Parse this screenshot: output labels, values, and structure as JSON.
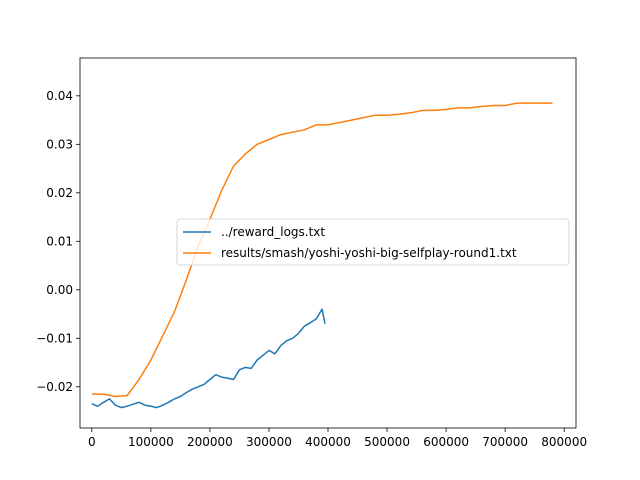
{
  "chart_data": {
    "type": "line",
    "title": "",
    "xlabel": "",
    "ylabel": "",
    "xlim": [
      -20000,
      820000
    ],
    "ylim": [
      -0.0285,
      0.0478
    ],
    "x_ticks": [
      0,
      100000,
      200000,
      300000,
      400000,
      500000,
      600000,
      700000,
      800000
    ],
    "x_tick_labels": [
      "0",
      "100000",
      "200000",
      "300000",
      "400000",
      "500000",
      "600000",
      "700000",
      "800000"
    ],
    "y_ticks": [
      -0.02,
      -0.01,
      0.0,
      0.01,
      0.02,
      0.03,
      0.04
    ],
    "y_tick_labels": [
      "−0.02",
      "−0.01",
      "0.00",
      "0.01",
      "0.02",
      "0.03",
      "0.04"
    ],
    "grid": false,
    "legend": {
      "placement": "center-right"
    },
    "series": [
      {
        "name": "../reward_logs.txt",
        "color": "#1f77b4",
        "x": [
          0,
          10000,
          20000,
          30000,
          40000,
          50000,
          60000,
          70000,
          80000,
          90000,
          100000,
          110000,
          120000,
          130000,
          140000,
          150000,
          160000,
          170000,
          180000,
          190000,
          200000,
          210000,
          220000,
          230000,
          240000,
          250000,
          260000,
          270000,
          280000,
          290000,
          300000,
          310000,
          320000,
          330000,
          340000,
          350000,
          360000,
          370000,
          380000,
          390000,
          395000
        ],
        "y": [
          -0.0235,
          -0.024,
          -0.0232,
          -0.0225,
          -0.0238,
          -0.0243,
          -0.024,
          -0.0236,
          -0.0232,
          -0.0238,
          -0.024,
          -0.0243,
          -0.0238,
          -0.0232,
          -0.0225,
          -0.022,
          -0.0212,
          -0.0205,
          -0.02,
          -0.0195,
          -0.0185,
          -0.0175,
          -0.018,
          -0.0182,
          -0.0185,
          -0.0165,
          -0.016,
          -0.0162,
          -0.0145,
          -0.0135,
          -0.0125,
          -0.0132,
          -0.0115,
          -0.0105,
          -0.01,
          -0.009,
          -0.0075,
          -0.0068,
          -0.006,
          -0.004,
          -0.007
        ]
      },
      {
        "name": "results/smash/yoshi-yoshi-big-selfplay-round1.txt",
        "color": "#ff7f0e",
        "x": [
          0,
          20000,
          40000,
          60000,
          80000,
          100000,
          120000,
          140000,
          160000,
          180000,
          200000,
          220000,
          240000,
          260000,
          280000,
          300000,
          320000,
          340000,
          360000,
          380000,
          400000,
          420000,
          440000,
          460000,
          480000,
          500000,
          520000,
          540000,
          560000,
          580000,
          600000,
          620000,
          640000,
          660000,
          680000,
          700000,
          720000,
          740000,
          760000,
          780000
        ],
        "y": [
          -0.0215,
          -0.0215,
          -0.022,
          -0.0218,
          -0.0185,
          -0.0145,
          -0.0095,
          -0.0045,
          0.002,
          0.009,
          0.0145,
          0.0205,
          0.0255,
          0.028,
          0.03,
          0.031,
          0.032,
          0.0325,
          0.033,
          0.034,
          0.034,
          0.0345,
          0.035,
          0.0355,
          0.036,
          0.036,
          0.0362,
          0.0365,
          0.037,
          0.037,
          0.0372,
          0.0375,
          0.0375,
          0.0378,
          0.038,
          0.038,
          0.0385,
          0.0385,
          0.0385,
          0.0385
        ]
      }
    ]
  }
}
